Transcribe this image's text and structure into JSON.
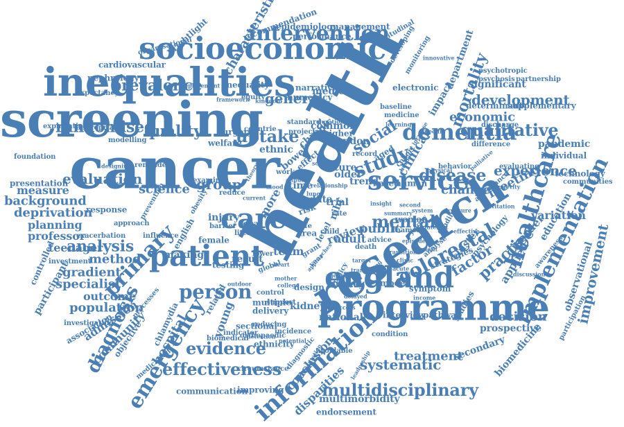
{
  "palette": {
    "word_color": "#4a7fb5",
    "background": "#ffffff"
  },
  "words": {
    "health": "health",
    "cancer": "cancer",
    "screening": "screening",
    "inequalities": "inequalities",
    "research": "research",
    "programme": "programme",
    "socioeconomic": "socioeconomic",
    "england": "england",
    "patient": "patient",
    "service": "service",
    "intervention": "intervention",
    "dementia": "dementia",
    "care": "care",
    "healthcare": "healthcare",
    "implementation": "implementation",
    "information": "information",
    "emergency": "emergency",
    "colorectal": "colorectal",
    "primary": "primary",
    "diagnosis": "diagnosis",
    "mortality": "mortality",
    "qualitative": "qualitative",
    "study": "study",
    "disease": "disease",
    "social": "social",
    "multidisciplinary": "multidisciplinary",
    "effectiveness": "effectiveness",
    "evidence": "evidence",
    "person": "person",
    "mental": "mental",
    "uptake": "uptake",
    "randomised": "randomised",
    "quality": "quality",
    "prevalence": "prevalence",
    "general": "general",
    "evaluation": "evaluation",
    "science": "science",
    "group": "group",
    "analysis": "analysis",
    "gradient": "gradient",
    "method": "method",
    "specialist": "specialist",
    "population": "population",
    "outcome": "outcome",
    "development": "development",
    "economic": "economic",
    "experience": "experience",
    "practice": "practice",
    "factor": "factor",
    "improvement": "improvement",
    "systematic": "systematic",
    "treatment": "treatment",
    "hospital": "hospital",
    "community": "community",
    "admission": "admission",
    "young": "young",
    "characteristic": "characteristic",
    "change": "change",
    "decision": "decision",
    "meeting": "meeting",
    "variation": "variation",
    "clinical": "clinical",
    "impact": "impact",
    "department": "department",
    "applied": "applied",
    "disorder": "disorder",
    "education": "education",
    "observational": "observational",
    "prospective": "prospective",
    "secondary": "secondary",
    "biomedicine": "biomedicine",
    "conclusion": "conclusion",
    "disparities": "disparities",
    "multimorbidity": "multimorbidity",
    "endorsement": "endorsement",
    "communication": "communication",
    "improving": "improving",
    "medication": "medication",
    "objective": "objective",
    "chlamydia": "chlamydia",
    "sectional": "sectional",
    "indicator": "indicator",
    "orthopaedic": "orthopaedic",
    "association": "association",
    "investigating": "investigating",
    "processes": "processes",
    "participant": "participant",
    "controlled": "controlled",
    "investment": "investment",
    "teenager": "teenager",
    "professor": "professor",
    "planning": "planning",
    "deprivation": "deprivation",
    "background": "background",
    "measure": "measure",
    "presentation": "presentation",
    "foundation": "foundation",
    "explanation": "explanation",
    "modelling": "modelling",
    "appropriate": "appropriate",
    "expectancy": "expectancy",
    "nephrology": "nephrology",
    "cardiovascular": "cardiovascular",
    "organisational": "organisational",
    "brightlight": "brightlight",
    "recommendation": "recommendation",
    "epidemiology": "epidemiology",
    "management": "management",
    "performance": "performance",
    "longitudinal": "longitudinal",
    "developing": "developing",
    "monitoring": "monitoring",
    "innovative": "innovative",
    "psychotropic": "psychotropic",
    "psychosis": "psychosis",
    "partnership": "partnership",
    "significant": "significant",
    "determinant": "determinant",
    "supplementary": "supplementary",
    "discharge": "discharge",
    "difference": "difference",
    "pandemic": "pandemic",
    "individual": "individual",
    "technology": "technology",
    "communities": "communities",
    "attendance": "attendance",
    "evaluating": "evaluating",
    "palliative": "palliative",
    "behavior": "behavior",
    "physical": "physical",
    "burden": "burden",
    "electronic": "electronic",
    "medical": "medical",
    "numeracy": "numeracy",
    "narrative": "narrative",
    "inequality": "inequality",
    "baseline": "baseline",
    "medicine": "medicine",
    "learning": "learning",
    "common": "common",
    "chronic": "chronic",
    "higher": "higher",
    "london": "london",
    "ethnic": "ethnic",
    "bowel": "bowel",
    "effect": "effect",
    "future": "future",
    "older": "older",
    "trend": "trend",
    "based": "based",
    "human": "human",
    "woman": "woman",
    "survey": "survey",
    "symptom": "symptom",
    "interview": "interview",
    "pathway": "pathway",
    "national": "national",
    "kidney": "kidney",
    "review": "review",
    "public": "public",
    "adult": "adult",
    "level": "level",
    "data": "data",
    "trial": "trial",
    "rate": "rate",
    "time": "time",
    "more": "more",
    "risk": "risk",
    "team": "team",
    "result": "result",
    "testing": "testing",
    "making": "making",
    "female": "female",
    "english": "english",
    "injury": "injury",
    "barrier": "barrier",
    "local": "local",
    "literacy": "literacy",
    "response": "response",
    "approach": "approach",
    "prevention": "prevention",
    "exacerbation": "exacerbation",
    "influence": "influence",
    "welfare": "welfare",
    "surgery": "surgery",
    "equity": "equity",
    "reminder": "reminder",
    "designing": "designing",
    "reduce": "reduce",
    "examine": "examine",
    "standard": "standard",
    "strategies": "strategies",
    "studies": "studies",
    "cluster": "cluster",
    "psychology": "psychology",
    "model": "model",
    "design": "design",
    "support": "support",
    "multiple": "multiple",
    "delivery": "delivery",
    "ethnicity": "ethnicity",
    "reducing": "reducing",
    "incidence": "incidence",
    "detection": "detection",
    "potential": "potential",
    "biomedical": "biomedical",
    "circumstance": "circumstance",
    "avoidable": "avoidable",
    "condition": "condition",
    "diagnostic": "diagnostic",
    "consultation": "consultation",
    "leadership": "leadership",
    "thames": "thames",
    "analyse": "analyse",
    "discussion": "discussion",
    "invitation": "invitation",
    "awareness": "awareness",
    "longevity": "longevity",
    "participation": "participation",
    "replacement": "replacement",
    "framework": "framework",
    "kingdom": "kingdom",
    "countrie": "countrie",
    "project": "project",
    "duration": "duration",
    "record": "record",
    "life": "life",
    "area": "area",
    "death": "death",
    "advice": "advice",
    "global": "global",
    "grant": "grant",
    "year": "year",
    "child": "child",
    "policy": "policy",
    "control": "control",
    "outdoor": "outdoor",
    "mood": "mood",
    "theory": "theory",
    "worker": "worker",
    "school": "school",
    "funding": "funding",
    "interest": "interest",
    "specific": "specific",
    "increase": "increase",
    "lower": "lower",
    "current": "current",
    "obesity": "obesity",
    "lung": "lung",
    "second": "second",
    "system": "system",
    "heart": "heart",
    "mother": "mother",
    "college": "college",
    "episodes": "episodes",
    "journey": "journey",
    "transition": "transition",
    "clinic": "clinic",
    "benefit": "benefit",
    "effective": "effective",
    "exposure": "exposure",
    "target": "target",
    "nihr": "nihr",
    "aged": "aged",
    "insight": "insight",
    "approaches": "approaches",
    "transfer": "transfer",
    "delayed": "delayed",
    "summary": "summary",
    "agency": "agency",
    "access": "access",
    "income": "income",
    "relationship": "relationship",
    "finding": "finding",
    "annual": "annual",
    "acute": "acute",
    "pilot": "pilot",
    "cohort": "cohort",
    "related": "related"
  }
}
